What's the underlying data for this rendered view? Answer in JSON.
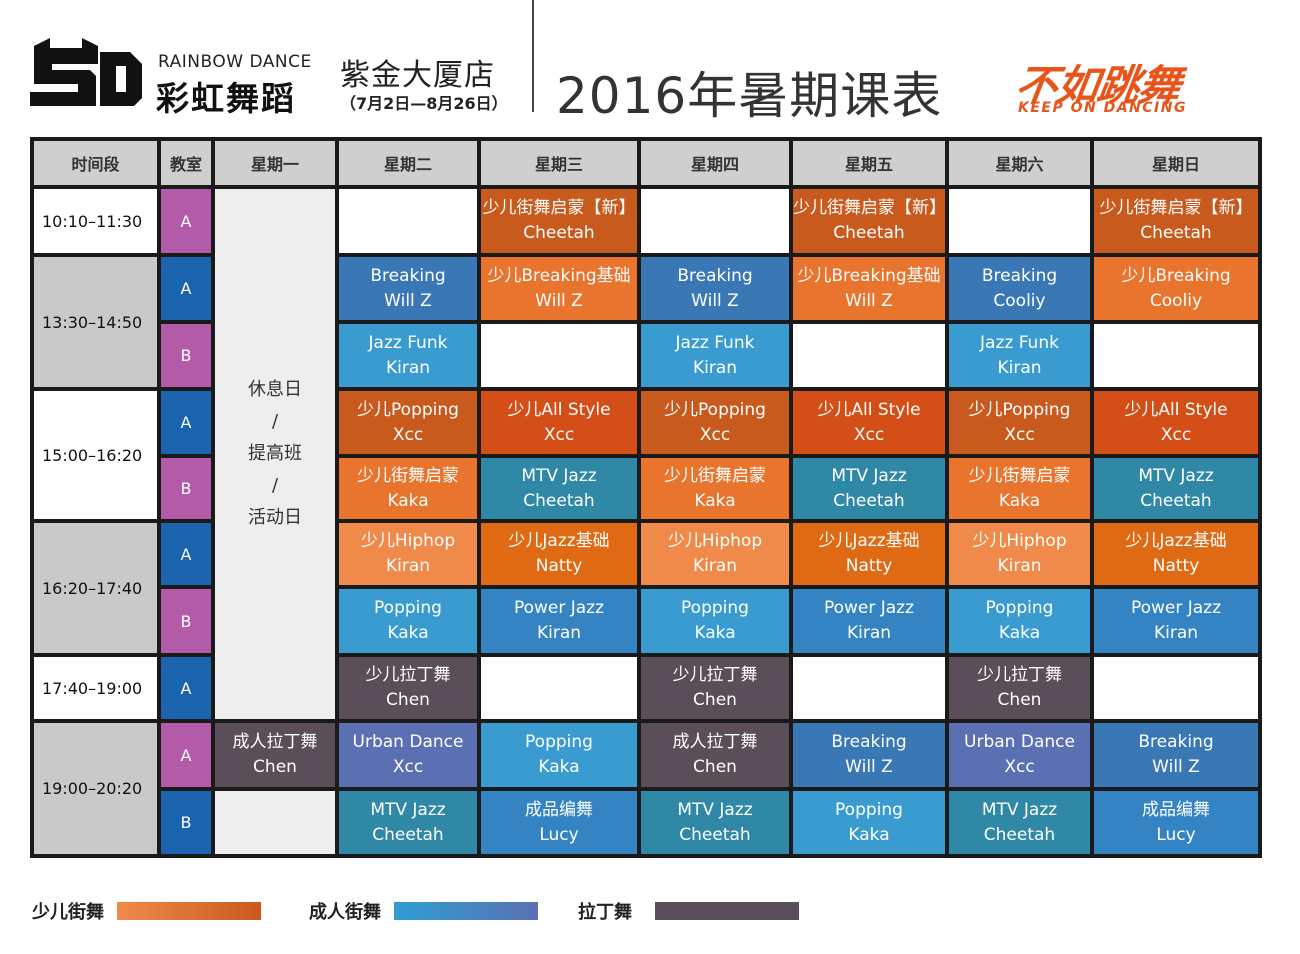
{
  "header": {
    "brand_en": "RAINBOW DANCE",
    "brand_cn": "彩虹舞蹈",
    "store": "紫金大厦店",
    "dates": "（7月2日—8月26日）",
    "title": "2016年暑期课表",
    "slogan_cn": "不如跳舞",
    "slogan_en": "KEEP ON DANCING"
  },
  "table": {
    "headers": [
      "时间段",
      "教室",
      "星期一",
      "星期二",
      "星期三",
      "星期四",
      "星期五",
      "星期六",
      "星期日"
    ],
    "times": [
      "10:10–11:30",
      "13:30–14:50",
      "15:00–16:20",
      "16:20–17:40",
      "17:40–19:00",
      "19:00–20:20"
    ],
    "rooms": [
      "A",
      "A",
      "B",
      "A",
      "B",
      "A",
      "B",
      "A",
      "A",
      "B"
    ],
    "monday_rest": [
      "休息日",
      "/",
      "提高班",
      "/",
      "活动日"
    ],
    "rows": [
      [
        {
          "l1": "",
          "l2": ""
        },
        {
          "l1": "少儿街舞启蒙【新】",
          "l2": "Cheetah"
        },
        {
          "l1": "",
          "l2": ""
        },
        {
          "l1": "少儿街舞启蒙【新】",
          "l2": "Cheetah"
        },
        {
          "l1": "",
          "l2": ""
        },
        {
          "l1": "少儿街舞启蒙【新】",
          "l2": "Cheetah"
        }
      ],
      [
        {
          "l1": "Breaking",
          "l2": "Will Z"
        },
        {
          "l1": "少儿Breaking基础",
          "l2": "Will Z"
        },
        {
          "l1": "Breaking",
          "l2": "Will Z"
        },
        {
          "l1": "少儿Breaking基础",
          "l2": "Will Z"
        },
        {
          "l1": "Breaking",
          "l2": "Cooliy"
        },
        {
          "l1": "少儿Breaking",
          "l2": "Cooliy"
        }
      ],
      [
        {
          "l1": "Jazz Funk",
          "l2": "Kiran"
        },
        {
          "l1": "",
          "l2": ""
        },
        {
          "l1": "Jazz Funk",
          "l2": "Kiran"
        },
        {
          "l1": "",
          "l2": ""
        },
        {
          "l1": "Jazz Funk",
          "l2": "Kiran"
        },
        {
          "l1": "",
          "l2": ""
        }
      ],
      [
        {
          "l1": "少儿Popping",
          "l2": "Xcc"
        },
        {
          "l1": "少儿All Style",
          "l2": "Xcc"
        },
        {
          "l1": "少儿Popping",
          "l2": "Xcc"
        },
        {
          "l1": "少儿All Style",
          "l2": "Xcc"
        },
        {
          "l1": "少儿Popping",
          "l2": "Xcc"
        },
        {
          "l1": "少儿All Style",
          "l2": "Xcc"
        }
      ],
      [
        {
          "l1": "少儿街舞启蒙",
          "l2": "Kaka"
        },
        {
          "l1": "MTV Jazz",
          "l2": "Cheetah"
        },
        {
          "l1": "少儿街舞启蒙",
          "l2": "Kaka"
        },
        {
          "l1": "MTV Jazz",
          "l2": "Cheetah"
        },
        {
          "l1": "少儿街舞启蒙",
          "l2": "Kaka"
        },
        {
          "l1": "MTV Jazz",
          "l2": "Cheetah"
        }
      ],
      [
        {
          "l1": "少儿Hiphop",
          "l2": "Kiran"
        },
        {
          "l1": "少儿Jazz基础",
          "l2": "Natty"
        },
        {
          "l1": "少儿Hiphop",
          "l2": "Kiran"
        },
        {
          "l1": "少儿Jazz基础",
          "l2": "Natty"
        },
        {
          "l1": "少儿Hiphop",
          "l2": "Kiran"
        },
        {
          "l1": "少儿Jazz基础",
          "l2": "Natty"
        }
      ],
      [
        {
          "l1": "Popping",
          "l2": "Kaka"
        },
        {
          "l1": "Power Jazz",
          "l2": "Kiran"
        },
        {
          "l1": "Popping",
          "l2": "Kaka"
        },
        {
          "l1": "Power Jazz",
          "l2": "Kiran"
        },
        {
          "l1": "Popping",
          "l2": "Kaka"
        },
        {
          "l1": "Power Jazz",
          "l2": "Kiran"
        }
      ],
      [
        {
          "l1": "少儿拉丁舞",
          "l2": "Chen"
        },
        {
          "l1": "",
          "l2": ""
        },
        {
          "l1": "少儿拉丁舞",
          "l2": "Chen"
        },
        {
          "l1": "",
          "l2": ""
        },
        {
          "l1": "少儿拉丁舞",
          "l2": "Chen"
        },
        {
          "l1": "",
          "l2": ""
        }
      ],
      [
        {
          "l1": "Urban Dance",
          "l2": "Xcc"
        },
        {
          "l1": "Popping",
          "l2": "Kaka"
        },
        {
          "l1": "成人拉丁舞",
          "l2": "Chen"
        },
        {
          "l1": "Breaking",
          "l2": "Will Z"
        },
        {
          "l1": "Urban Dance",
          "l2": "Xcc"
        },
        {
          "l1": "Breaking",
          "l2": "Will Z"
        }
      ],
      [
        {
          "l1": "MTV Jazz",
          "l2": "Cheetah"
        },
        {
          "l1": "成品编舞",
          "l2": "Lucy"
        },
        {
          "l1": "MTV Jazz",
          "l2": "Cheetah"
        },
        {
          "l1": "Popping",
          "l2": "Kaka"
        },
        {
          "l1": "MTV Jazz",
          "l2": "Cheetah"
        },
        {
          "l1": "成品编舞",
          "l2": "Lucy"
        }
      ]
    ],
    "monday_evening": {
      "l1": "成人拉丁舞",
      "l2": "Chen"
    }
  },
  "legend": [
    {
      "label": "少儿街舞",
      "color_from": "#f08a4b",
      "color_to": "#c85a1d"
    },
    {
      "label": "成人街舞",
      "color_from": "#2f9ed4",
      "color_to": "#5a70b2"
    },
    {
      "label": "拉丁舞",
      "color_from": "#5a4e58",
      "color_to": "#5a4e58"
    }
  ]
}
